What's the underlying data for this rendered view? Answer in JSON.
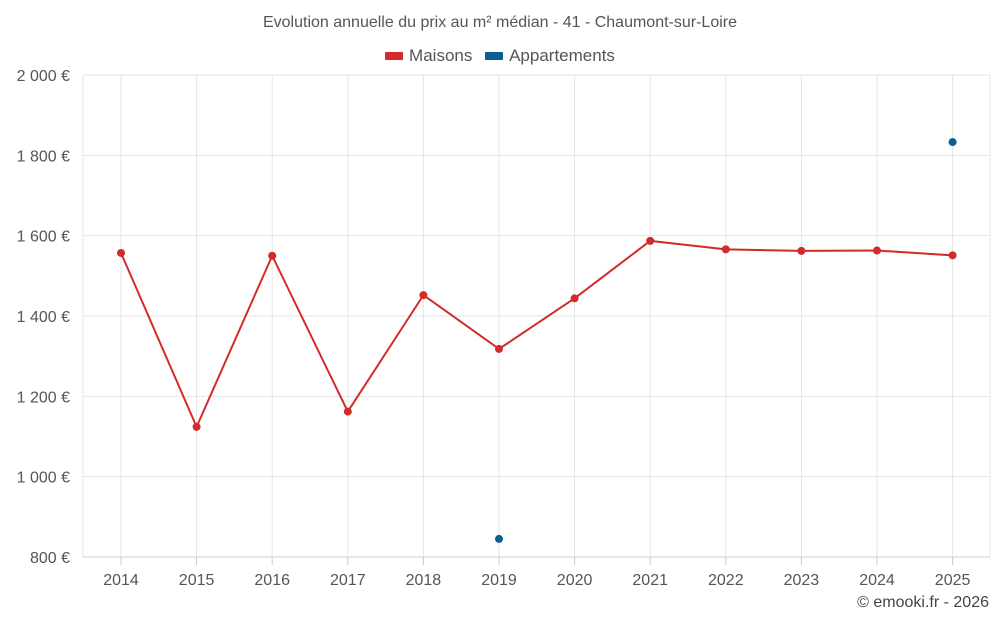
{
  "title": "Evolution annuelle du prix au m² médian - 41 - Chaumont-sur-Loire",
  "footer": "© emooki.fr - 2026",
  "colors": {
    "maisons": "#d32a2a",
    "appartements": "#0d5e94",
    "grid": "#e6e6e6",
    "axis": "#cccccc"
  },
  "legend": [
    {
      "label": "Maisons",
      "color": "#d32a2a"
    },
    {
      "label": "Appartements",
      "color": "#0d5e94"
    }
  ],
  "chart_data": {
    "type": "line",
    "title": "Evolution annuelle du prix au m² médian - 41 - Chaumont-sur-Loire",
    "categories": [
      "2014",
      "2015",
      "2016",
      "2017",
      "2018",
      "2019",
      "2020",
      "2021",
      "2022",
      "2023",
      "2024",
      "2025"
    ],
    "series": [
      {
        "name": "Maisons",
        "values": [
          1557,
          1124,
          1550,
          1162,
          1452,
          1318,
          1444,
          1587,
          1566,
          1562,
          1563,
          1551
        ]
      },
      {
        "name": "Appartements",
        "values": [
          null,
          null,
          null,
          null,
          null,
          845,
          null,
          null,
          null,
          null,
          null,
          1833
        ]
      }
    ],
    "yticks": [
      "800 €",
      "1 000 €",
      "1 200 €",
      "1 400 €",
      "1 600 €",
      "1 800 €",
      "2 000 €"
    ],
    "ylim": [
      800,
      2000
    ],
    "grid": true,
    "legend_position": "top-center"
  }
}
